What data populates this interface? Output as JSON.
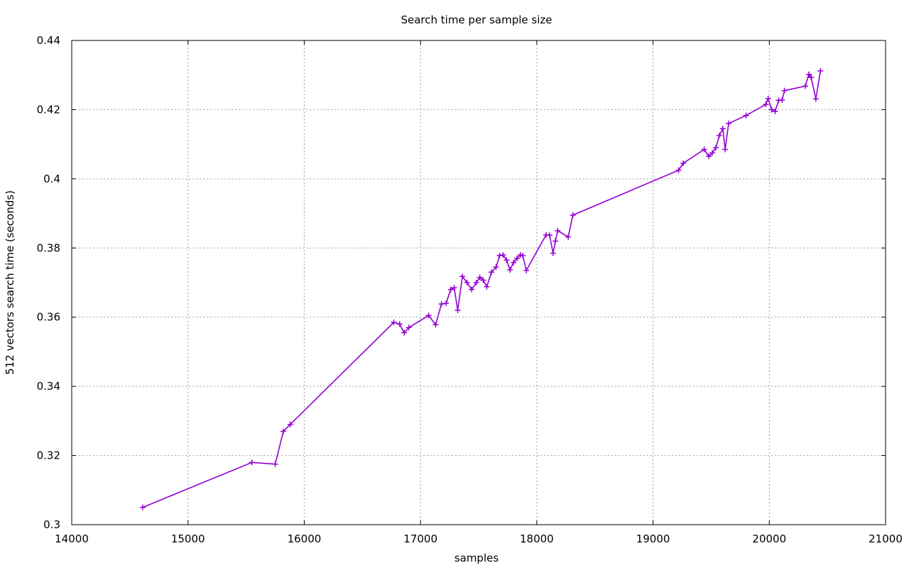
{
  "chart_data": {
    "type": "line",
    "title": "Search time per sample size",
    "xlabel": "samples",
    "ylabel": "512 vectors search time (seconds)",
    "xlim": [
      14000,
      21000
    ],
    "ylim": [
      0.3,
      0.44
    ],
    "xticks": [
      14000,
      15000,
      16000,
      17000,
      18000,
      19000,
      20000,
      21000
    ],
    "yticks": [
      0.3,
      0.32,
      0.34,
      0.36,
      0.38,
      0.4,
      0.42,
      0.44
    ],
    "xtick_labels": [
      "14000",
      "15000",
      "16000",
      "17000",
      "18000",
      "19000",
      "20000",
      "21000"
    ],
    "ytick_labels": [
      "0.3",
      "0.32",
      "0.34",
      "0.36",
      "0.38",
      "0.4",
      "0.42",
      "0.44"
    ],
    "grid": true,
    "legend": "none",
    "series": [
      {
        "color": "#9400d3",
        "marker": "plus",
        "x": [
          14610,
          15550,
          15750,
          15820,
          15880,
          16770,
          16820,
          16860,
          16900,
          17070,
          17130,
          17180,
          17220,
          17260,
          17290,
          17320,
          17360,
          17400,
          17440,
          17480,
          17510,
          17540,
          17570,
          17610,
          17650,
          17680,
          17710,
          17740,
          17770,
          17800,
          17830,
          17860,
          17880,
          17910,
          18080,
          18110,
          18140,
          18160,
          18180,
          18270,
          18310,
          19220,
          19260,
          19440,
          19480,
          19510,
          19540,
          19570,
          19600,
          19620,
          19650,
          19800,
          19970,
          19990,
          20020,
          20050,
          20080,
          20110,
          20130,
          20310,
          20340,
          20360,
          20400,
          20440
        ],
        "y": [
          0.305,
          0.318,
          0.3175,
          0.327,
          0.329,
          0.3585,
          0.358,
          0.3555,
          0.357,
          0.3605,
          0.3578,
          0.3638,
          0.364,
          0.368,
          0.3685,
          0.362,
          0.3718,
          0.37,
          0.368,
          0.37,
          0.3715,
          0.3707,
          0.3688,
          0.373,
          0.3745,
          0.3778,
          0.378,
          0.3765,
          0.3737,
          0.3758,
          0.377,
          0.378,
          0.3778,
          0.3735,
          0.3838,
          0.3837,
          0.3785,
          0.382,
          0.385,
          0.3832,
          0.3895,
          0.4025,
          0.4045,
          0.4085,
          0.4065,
          0.4075,
          0.409,
          0.4125,
          0.4145,
          0.4085,
          0.416,
          0.4183,
          0.4215,
          0.4232,
          0.42,
          0.4195,
          0.4227,
          0.4228,
          0.4255,
          0.4268,
          0.4302,
          0.4293,
          0.4231,
          0.4312
        ]
      }
    ]
  }
}
